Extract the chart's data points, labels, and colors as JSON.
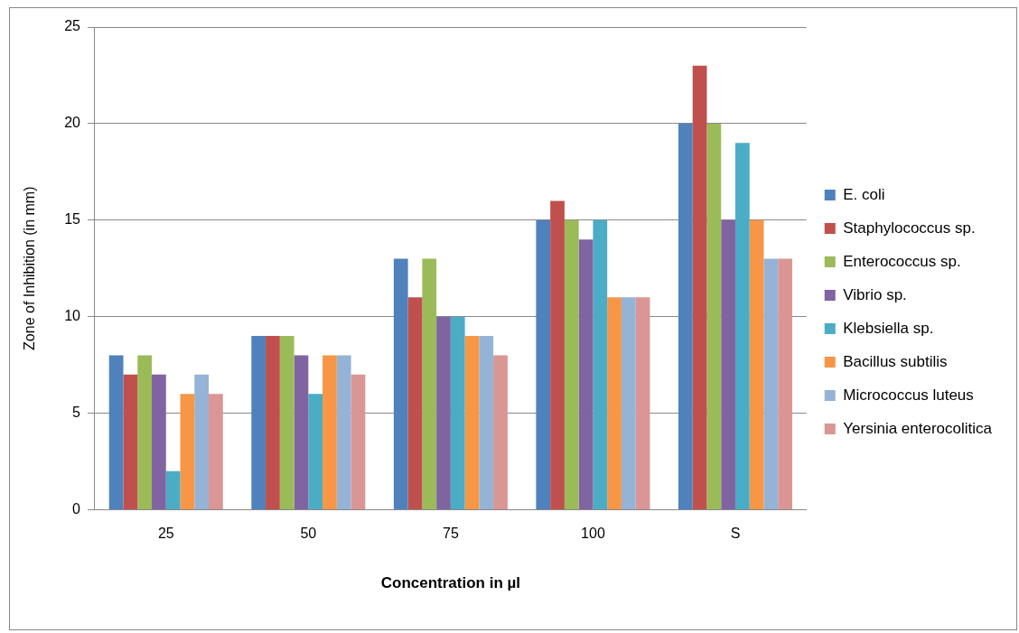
{
  "chart_data": {
    "type": "bar",
    "xlabel": "Concentration in µl",
    "ylabel": "Zone of Inhibition (in mm)",
    "categories": [
      "25",
      "50",
      "75",
      "100",
      "S"
    ],
    "series": [
      {
        "name": "E. coli",
        "color": "#4f81bd",
        "values": [
          8,
          9,
          13,
          15,
          20
        ]
      },
      {
        "name": "Staphylococcus sp.",
        "color": "#c0504d",
        "values": [
          7,
          9,
          11,
          16,
          23
        ]
      },
      {
        "name": "Enterococcus sp.",
        "color": "#9bbb59",
        "values": [
          8,
          9,
          13,
          15,
          20
        ]
      },
      {
        "name": "Vibrio sp.",
        "color": "#8064a2",
        "values": [
          7,
          8,
          10,
          14,
          15
        ]
      },
      {
        "name": "Klebsiella sp.",
        "color": "#4bacc6",
        "values": [
          2,
          6,
          10,
          15,
          19
        ]
      },
      {
        "name": "Bacillus subtilis",
        "color": "#f79646",
        "values": [
          6,
          8,
          9,
          11,
          15
        ]
      },
      {
        "name": "Micrococcus luteus",
        "color": "#95b3d7",
        "values": [
          7,
          8,
          9,
          11,
          13
        ]
      },
      {
        "name": "Yersinia enterocolitica",
        "color": "#d99694",
        "values": [
          6,
          7,
          8,
          11,
          13
        ]
      }
    ],
    "ylim": [
      0,
      25
    ],
    "yticks": [
      0,
      5,
      10,
      15,
      20,
      25
    ],
    "grid": "y",
    "legend": "right"
  }
}
